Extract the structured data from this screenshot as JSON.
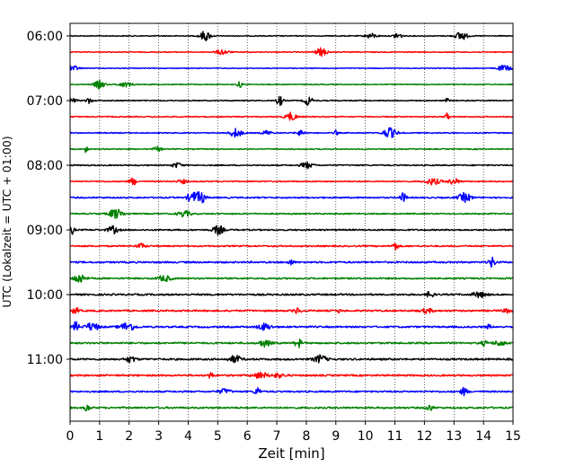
{
  "chart_data": {
    "type": "line",
    "title": "",
    "xlabel": "Zeit  [min]",
    "ylabel": "UTC (Lokalzeit = UTC + 01:00)",
    "xlim": [
      0,
      15
    ],
    "x_ticks": [
      "0",
      "1",
      "2",
      "3",
      "4",
      "5",
      "6",
      "7",
      "8",
      "9",
      "10",
      "11",
      "12",
      "13",
      "14",
      "15"
    ],
    "y_ticks": [
      "06:00",
      "07:00",
      "08:00",
      "09:00",
      "10:00",
      "11:00"
    ],
    "grid": "vertical-dotted",
    "trace_interval_minutes": 15,
    "colors": [
      "#000000",
      "#ff0000",
      "#0000ff",
      "#008000"
    ],
    "series": [
      {
        "start": "06:00",
        "color": "#000000",
        "amplitude": 0.35
      },
      {
        "start": "06:15",
        "color": "#ff0000",
        "amplitude": 0.35
      },
      {
        "start": "06:30",
        "color": "#0000ff",
        "amplitude": 0.3
      },
      {
        "start": "06:45",
        "color": "#008000",
        "amplitude": 0.35
      },
      {
        "start": "07:00",
        "color": "#000000",
        "amplitude": 0.4
      },
      {
        "start": "07:15",
        "color": "#ff0000",
        "amplitude": 0.4
      },
      {
        "start": "07:30",
        "color": "#0000ff",
        "amplitude": 0.4
      },
      {
        "start": "07:45",
        "color": "#008000",
        "amplitude": 0.4
      },
      {
        "start": "08:00",
        "color": "#000000",
        "amplitude": 0.45
      },
      {
        "start": "08:15",
        "color": "#ff0000",
        "amplitude": 0.45
      },
      {
        "start": "08:30",
        "color": "#0000ff",
        "amplitude": 0.55
      },
      {
        "start": "08:45",
        "color": "#008000",
        "amplitude": 0.5
      },
      {
        "start": "09:00",
        "color": "#000000",
        "amplitude": 0.55
      },
      {
        "start": "09:15",
        "color": "#ff0000",
        "amplitude": 0.55
      },
      {
        "start": "09:30",
        "color": "#0000ff",
        "amplitude": 0.65
      },
      {
        "start": "09:45",
        "color": "#008000",
        "amplitude": 0.6
      },
      {
        "start": "10:00",
        "color": "#000000",
        "amplitude": 0.65
      },
      {
        "start": "10:15",
        "color": "#ff0000",
        "amplitude": 0.65
      },
      {
        "start": "10:30",
        "color": "#0000ff",
        "amplitude": 0.65
      },
      {
        "start": "10:45",
        "color": "#008000",
        "amplitude": 0.65
      },
      {
        "start": "11:00",
        "color": "#000000",
        "amplitude": 0.7
      },
      {
        "start": "11:15",
        "color": "#ff0000",
        "amplitude": 0.65
      },
      {
        "start": "11:30",
        "color": "#0000ff",
        "amplitude": 0.6
      },
      {
        "start": "11:45",
        "color": "#008000",
        "amplitude": 0.65
      }
    ]
  }
}
